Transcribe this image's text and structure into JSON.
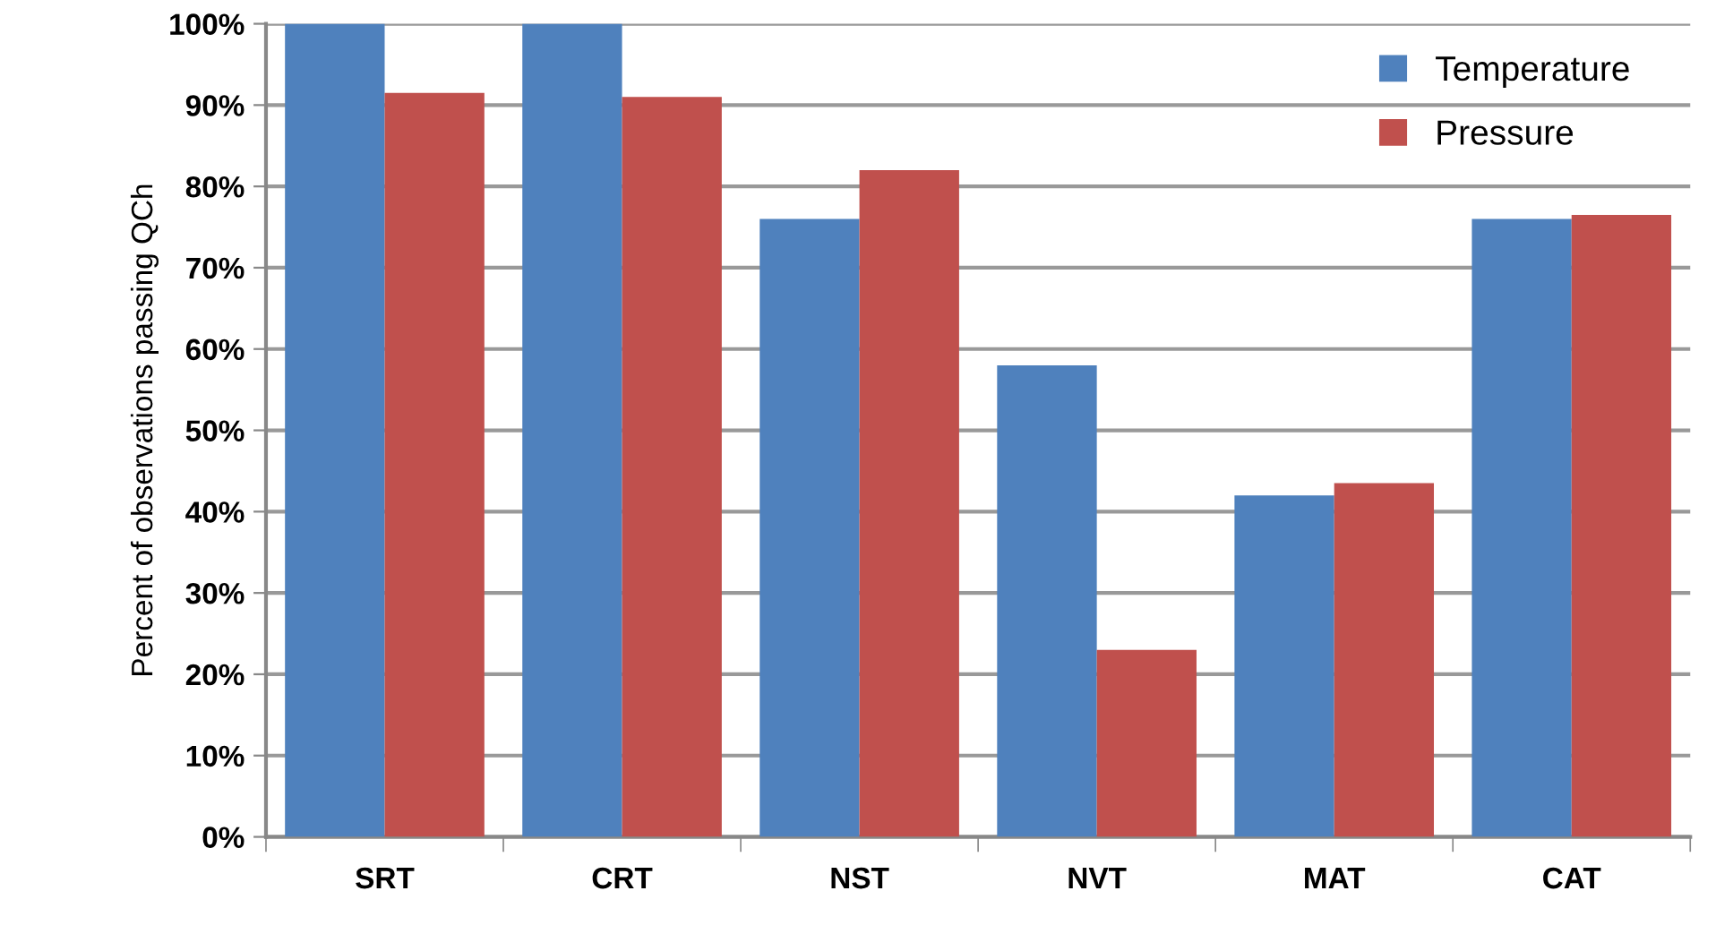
{
  "chart_data": {
    "type": "bar",
    "ylabel": "Percent of observations passing QCh",
    "categories": [
      "SRT",
      "CRT",
      "NST",
      "NVT",
      "MAT",
      "CAT"
    ],
    "series": [
      {
        "name": "Temperature",
        "color": "#4f81bd",
        "values": [
          100,
          100,
          76,
          58,
          42,
          76
        ]
      },
      {
        "name": "Pressure",
        "color": "#c0504d",
        "values": [
          91.5,
          91,
          82,
          23,
          43.5,
          76.5
        ]
      }
    ],
    "ylim": [
      0,
      100
    ],
    "yticks": [
      {
        "value": 0,
        "label": "0%"
      },
      {
        "value": 10,
        "label": "10%"
      },
      {
        "value": 20,
        "label": "20%"
      },
      {
        "value": 30,
        "label": "30%"
      },
      {
        "value": 40,
        "label": "40%"
      },
      {
        "value": 50,
        "label": "50%"
      },
      {
        "value": 60,
        "label": "60%"
      },
      {
        "value": 70,
        "label": "70%"
      },
      {
        "value": 80,
        "label": "80%"
      },
      {
        "value": 90,
        "label": "90%"
      },
      {
        "value": 100,
        "label": "100%"
      }
    ],
    "grid": "y",
    "legend": "top right"
  }
}
